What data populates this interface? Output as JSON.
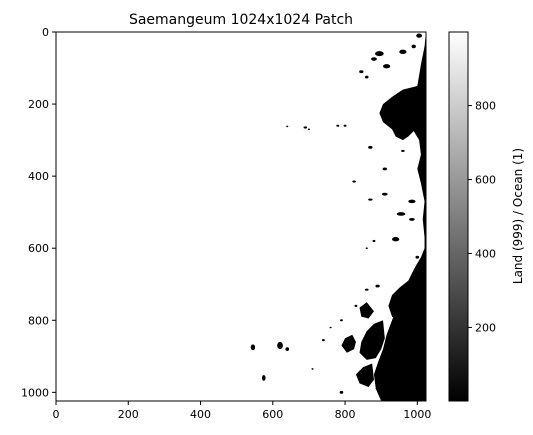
{
  "chart_data": {
    "type": "heatmap",
    "title": "Saemangeum 1024x1024 Patch",
    "xlabel": "",
    "ylabel": "",
    "x_range": [
      0,
      1024
    ],
    "y_range": [
      0,
      1024
    ],
    "y_inverted": true,
    "x_ticks": [
      0,
      200,
      400,
      600,
      800,
      1000
    ],
    "y_ticks": [
      0,
      200,
      400,
      600,
      800,
      1000
    ],
    "colormap": "gray",
    "grid": false,
    "colorbar": {
      "label": "Land (999) / Ocean (1)",
      "range": [
        1,
        999
      ],
      "ticks": [
        200,
        400,
        600,
        800
      ],
      "color_min": "#000000",
      "color_max": "#ffffff"
    },
    "pixel_classes": {
      "land_value": 999,
      "ocean_value": 1,
      "land_color": "#ffffff",
      "ocean_color": "#000000"
    }
  }
}
